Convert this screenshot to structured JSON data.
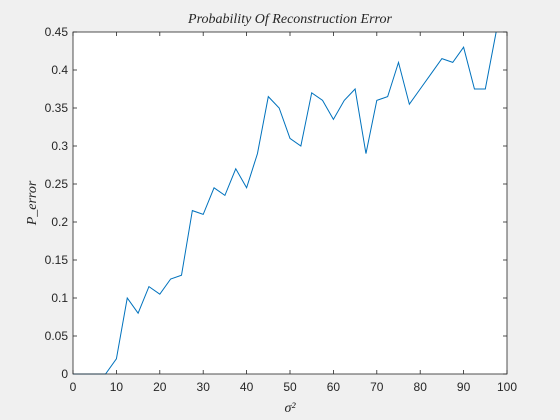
{
  "chart_data": {
    "type": "line",
    "title": "Probability Of Reconstruction Error",
    "xlabel": "σ²",
    "ylabel": "P_error",
    "xlim": [
      0,
      100
    ],
    "ylim": [
      0,
      0.45
    ],
    "x_ticks": [
      0,
      10,
      20,
      30,
      40,
      50,
      60,
      70,
      80,
      90,
      100
    ],
    "y_ticks": [
      0,
      0.05,
      0.1,
      0.15,
      0.2,
      0.25,
      0.3,
      0.35,
      0.4,
      0.45
    ],
    "x_tick_labels": [
      "0",
      "10",
      "20",
      "30",
      "40",
      "50",
      "60",
      "70",
      "80",
      "90",
      "100"
    ],
    "y_tick_labels": [
      "0",
      "0.05",
      "0.1",
      "0.15",
      "0.2",
      "0.25",
      "0.3",
      "0.35",
      "0.4",
      "0.45"
    ],
    "grid": false,
    "legend": "none",
    "series": [
      {
        "color": "#0072BD",
        "x": [
          0,
          2.5,
          5,
          7.5,
          10,
          12.5,
          15,
          17.5,
          20,
          22.5,
          25,
          27.5,
          30,
          32.5,
          35,
          37.5,
          40,
          42.5,
          45,
          47.5,
          50,
          52.5,
          55,
          57.5,
          60,
          62.5,
          65,
          67.5,
          70,
          72.5,
          75,
          77.5,
          80,
          82.5,
          85,
          87.5,
          90,
          92.5,
          95,
          97.5
        ],
        "values": [
          0,
          0,
          0,
          0,
          0.02,
          0.1,
          0.08,
          0.115,
          0.105,
          0.125,
          0.13,
          0.215,
          0.21,
          0.245,
          0.235,
          0.27,
          0.245,
          0.29,
          0.365,
          0.35,
          0.31,
          0.3,
          0.37,
          0.36,
          0.335,
          0.36,
          0.375,
          0.29,
          0.36,
          0.365,
          0.41,
          0.355,
          0.375,
          0.395,
          0.415,
          0.41,
          0.43,
          0.375,
          0.375,
          0.45
        ]
      }
    ]
  }
}
